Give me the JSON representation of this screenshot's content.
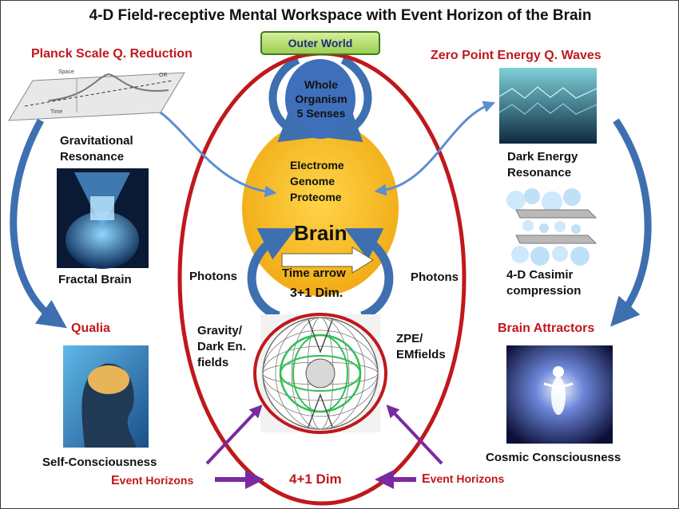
{
  "title": "4-D Field-receptive Mental Workspace with Event Horizon of the Brain",
  "outer_world": "Outer World",
  "whole_organism": [
    "Whole",
    "Organism",
    "5 Senses"
  ],
  "egp": [
    "Electrome",
    "Genome",
    "Proteome"
  ],
  "brain": "Brain",
  "time_arrow": "Time arrow",
  "dim_3": "3+1 Dim.",
  "dim_4": "4+1 Dim",
  "photons": "Photons",
  "gravity_fields": [
    "Gravity/",
    "Dark En.",
    "fields"
  ],
  "zpe_fields": [
    "ZPE/",
    "EMfields"
  ],
  "left": {
    "heading": "Planck Scale Q. Reduction",
    "gravitational": "Gravitational Resonance",
    "fractal": "Fractal Brain",
    "qualia": "Qualia",
    "self": "Self-Consciousness",
    "space_label": "Space",
    "time_label": "Time",
    "or_label": "OR"
  },
  "right": {
    "heading": "Zero Point Energy Q. Waves",
    "dark_energy": "Dark Energy Resonance",
    "casimir": "4-D Casimir compression",
    "attractors": "Brain Attractors",
    "cosmic": "Cosmic Consciousness"
  },
  "event_horizons": {
    "cap": "E",
    "rest": "vent Horizons"
  },
  "colors": {
    "red": "#c0181c",
    "yolk": "#f6b51c",
    "blue_arrow": "#3e6fb0",
    "purple": "#7a2aa0",
    "green_box": "#9ccf52"
  }
}
